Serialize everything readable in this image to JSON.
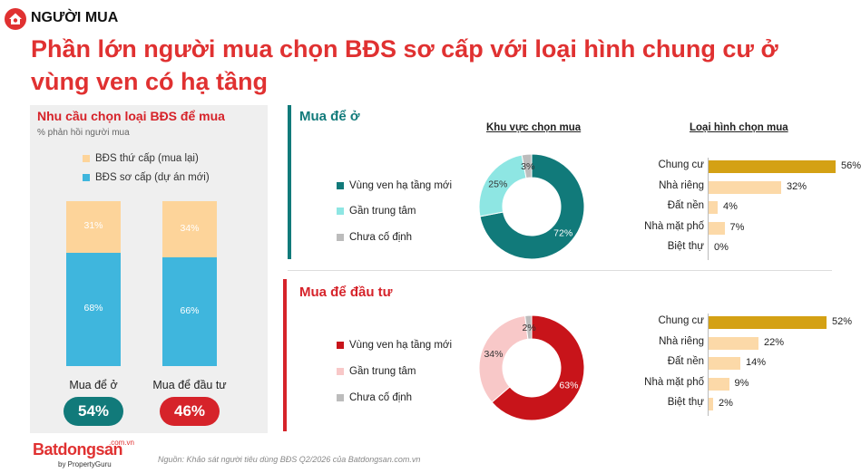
{
  "header": {
    "section": "NGƯỜI MUA",
    "headline": "Phần lớn người mua chọn BĐS sơ cấp với loại hình chung cư ở vùng ven có hạ tầng"
  },
  "colors": {
    "red": "#d6232a",
    "teal": "#117a7a",
    "light_teal": "#8ee6e3",
    "grey": "#bcbcbc",
    "peach": "#fdd49a",
    "sky": "#3fb6dd",
    "gold": "#d4a114",
    "light_peach": "#fcd9a8",
    "pink": "#f8c8c8",
    "dark_red": "#c8141a"
  },
  "left": {
    "title": "Nhu cầu chọn loại BĐS để mua",
    "subtitle": "% phản hồi người mua",
    "legend": [
      "BĐS thứ cấp (mua lại)",
      "BĐS sơ cấp (dự án mới)"
    ],
    "bars": [
      {
        "label": "Mua để ở",
        "primary": "68%",
        "secondary": "31%",
        "total": "54%"
      },
      {
        "label": "Mua để đầu tư",
        "primary": "66%",
        "secondary": "34%",
        "total": "46%"
      }
    ]
  },
  "sections": [
    {
      "title": "Mua để ở"
    },
    {
      "title": "Mua để đầu tư"
    }
  ],
  "col_heads": {
    "area": "Khu vực chọn mua",
    "type": "Loại hình chọn mua"
  },
  "area_legend": [
    "Vùng ven hạ tầng mới",
    "Gần trung tâm",
    "Chưa cố định"
  ],
  "footer": {
    "source": "Nguồn: Khảo sát người tiêu dùng BĐS Q2/2026 của Batdongsan.com.vn",
    "brand": "Batdongsan",
    "brand_sub": "by PropertyGuru",
    "brand_vn": ".com.vn"
  },
  "chart_data": [
    {
      "type": "bar",
      "title": "Nhu cầu chọn loại BĐS để mua",
      "subtitle": "% phản hồi người mua",
      "categories": [
        "Mua để ở",
        "Mua để đầu tư"
      ],
      "series": [
        {
          "name": "BĐS sơ cấp (dự án mới)",
          "values": [
            68,
            66
          ]
        },
        {
          "name": "BĐS thứ cấp (mua lại)",
          "values": [
            31,
            34
          ]
        }
      ],
      "ylim": [
        0,
        100
      ]
    },
    {
      "type": "pie",
      "title": "Khu vực chọn mua",
      "group": "Mua để ở",
      "categories": [
        "Vùng ven hạ tầng mới",
        "Gần trung tâm",
        "Chưa cố định"
      ],
      "values": [
        72,
        25,
        3
      ]
    },
    {
      "type": "pie",
      "title": "Khu vực chọn mua",
      "group": "Mua để đầu tư",
      "categories": [
        "Vùng ven hạ tầng mới",
        "Gần trung tâm",
        "Chưa cố định"
      ],
      "values": [
        63,
        34,
        2
      ]
    },
    {
      "type": "bar",
      "title": "Loại hình chọn mua",
      "group": "Mua để ở",
      "categories": [
        "Chung cư",
        "Nhà riêng",
        "Đất nền",
        "Nhà mặt phố",
        "Biệt thự"
      ],
      "values": [
        56,
        32,
        4,
        7,
        0
      ]
    },
    {
      "type": "bar",
      "title": "Loại hình chọn mua",
      "group": "Mua để đầu tư",
      "categories": [
        "Chung cư",
        "Nhà riêng",
        "Đất nền",
        "Nhà mặt phố",
        "Biệt thự"
      ],
      "values": [
        52,
        22,
        14,
        9,
        2
      ]
    }
  ]
}
